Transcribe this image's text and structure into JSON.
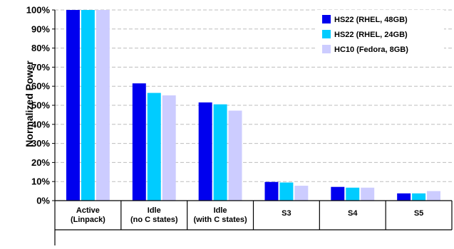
{
  "chart_data": {
    "type": "bar",
    "title": "",
    "xlabel": "",
    "ylabel": "Normalized Power",
    "ylim": [
      0,
      100
    ],
    "yticks": [
      "0%",
      "10%",
      "20%",
      "30%",
      "40%",
      "50%",
      "60%",
      "70%",
      "80%",
      "90%",
      "100%"
    ],
    "grid": true,
    "legend_position": "top-right",
    "categories": [
      [
        "Active",
        "(Linpack)"
      ],
      [
        "Idle",
        "(no C states)"
      ],
      [
        "Idle",
        "(with C states)"
      ],
      [
        "S3"
      ],
      [
        "S4"
      ],
      [
        "S5"
      ]
    ],
    "series": [
      {
        "name": "HS22 (RHEL, 48GB)",
        "color": "#0000ee",
        "values": [
          100,
          61.5,
          51.5,
          9.8,
          7.2,
          3.8
        ]
      },
      {
        "name": "HS22 (RHEL, 24GB)",
        "color": "#00ccff",
        "values": [
          100,
          56.5,
          50.5,
          9.5,
          6.8,
          3.8
        ]
      },
      {
        "name": "HC10 (Fedora, 8GB)",
        "color": "#ccccff",
        "values": [
          100,
          55.2,
          47.2,
          7.8,
          6.8,
          5.0
        ]
      }
    ]
  }
}
